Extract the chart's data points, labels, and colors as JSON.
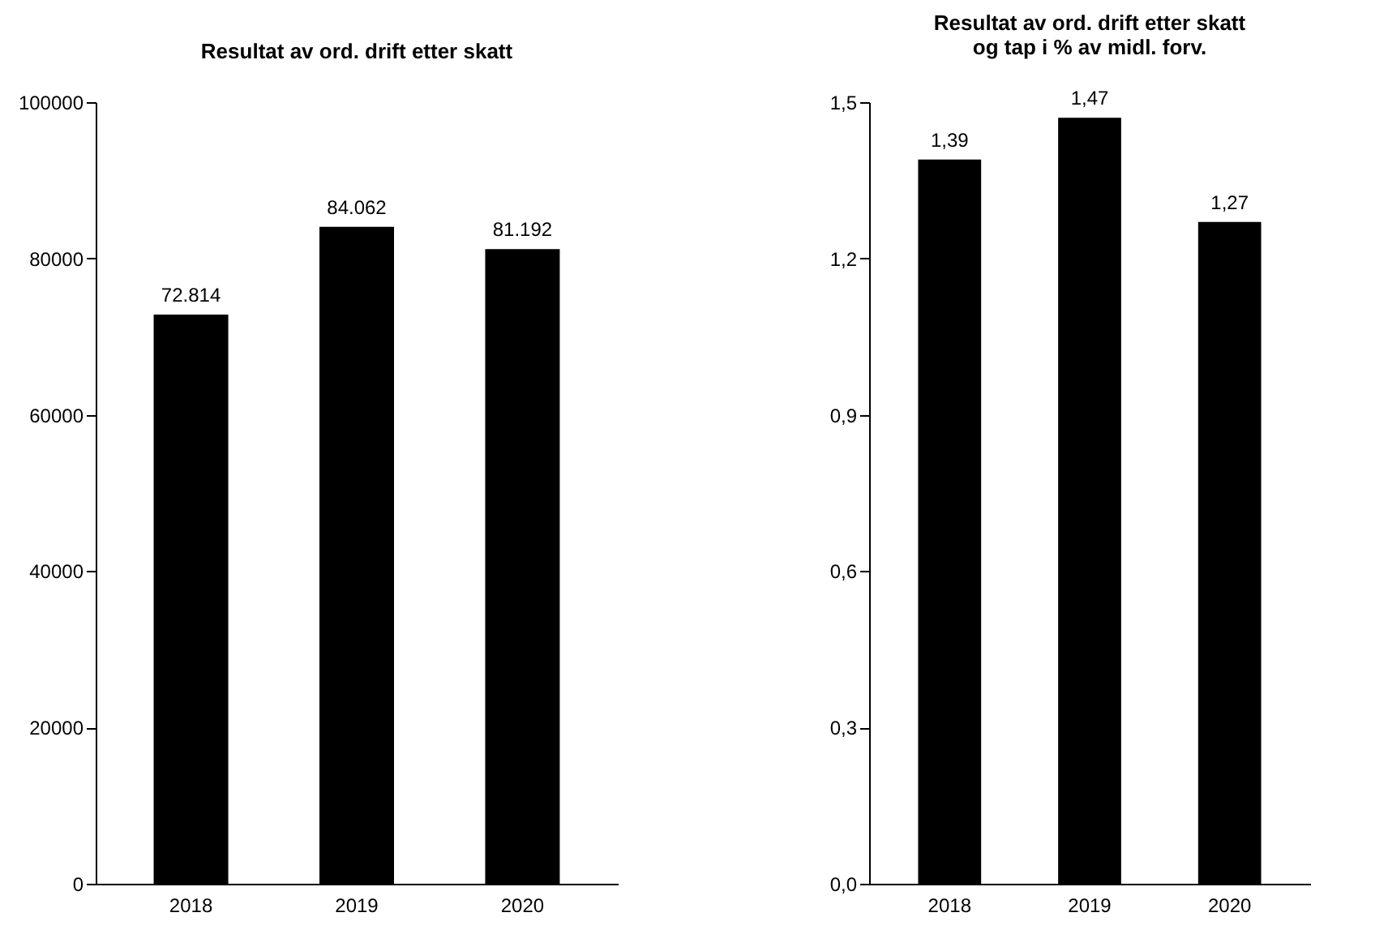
{
  "chart_data": [
    {
      "type": "bar",
      "title": "Resultat av ord. drift etter skatt",
      "categories": [
        "2018",
        "2019",
        "2020"
      ],
      "values": [
        72814,
        84062,
        81192
      ],
      "value_labels": [
        "72.814",
        "84.062",
        "81.192"
      ],
      "color": "#000000",
      "ylim": [
        0,
        100000
      ],
      "yticks": [
        0,
        20000,
        40000,
        60000,
        80000,
        100000
      ],
      "grid": false
    },
    {
      "type": "bar",
      "title": "Resultat av ord. drift etter skatt\nog tap i % av midl. forv.",
      "categories": [
        "2018",
        "2019",
        "2020"
      ],
      "values": [
        1.39,
        1.47,
        1.27
      ],
      "value_labels": [
        "1,39",
        "1,47",
        "1,27"
      ],
      "color": "#000000",
      "ylim": [
        0,
        1.5
      ],
      "yticks": [
        {
          "value": 0,
          "label": "0,0"
        },
        {
          "value": 0.3,
          "label": "0,3"
        },
        {
          "value": 0.6,
          "label": "0,6"
        },
        {
          "value": 0.9,
          "label": "0,9"
        },
        {
          "value": 1.2,
          "label": "1,2"
        },
        {
          "value": 1.5,
          "label": "1,5"
        }
      ],
      "grid": false
    }
  ]
}
